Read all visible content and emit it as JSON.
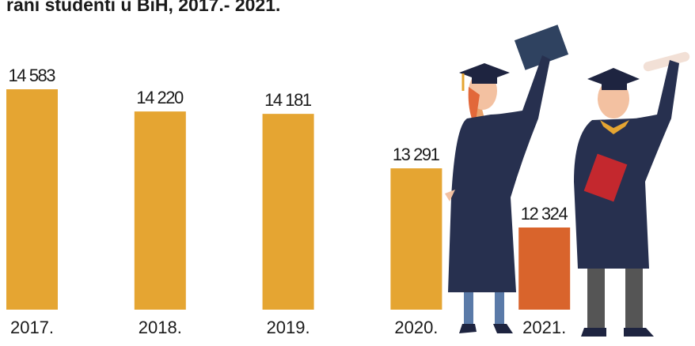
{
  "chart_data": {
    "type": "bar",
    "title": "rani studenti u BiH, 2017.- 2021.",
    "categories": [
      "2017.",
      "2018.",
      "2019.",
      "2020.",
      "2021."
    ],
    "values": [
      14583,
      14220,
      14181,
      13291,
      12324
    ],
    "value_labels": [
      "14 583",
      "14 220",
      "14 181",
      "13 291",
      "12 324"
    ],
    "colors": [
      "#e5a532",
      "#e5a532",
      "#e5a532",
      "#e5a532",
      "#d9642c"
    ]
  }
}
